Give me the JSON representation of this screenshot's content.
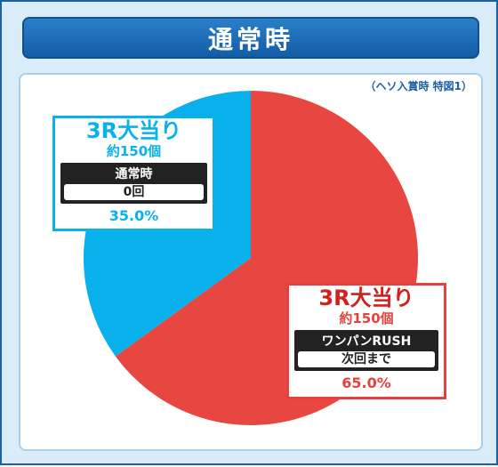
{
  "header": {
    "title": "通常時"
  },
  "note": "（ヘソ入賞時 特図1）",
  "chart_data": {
    "type": "pie",
    "slices": [
      {
        "title": "3R大当り",
        "balls": "約150個",
        "mode_label": "ワンパンRUSH",
        "mode_value": "次回まで",
        "percent_label": "65.0%",
        "value": 65.0,
        "color": "#e84641"
      },
      {
        "title": "3R大当り",
        "balls": "約150個",
        "mode_label": "通常時",
        "mode_value": "0回",
        "percent_label": "35.0%",
        "value": 35.0,
        "color": "#08b0ec"
      }
    ]
  }
}
